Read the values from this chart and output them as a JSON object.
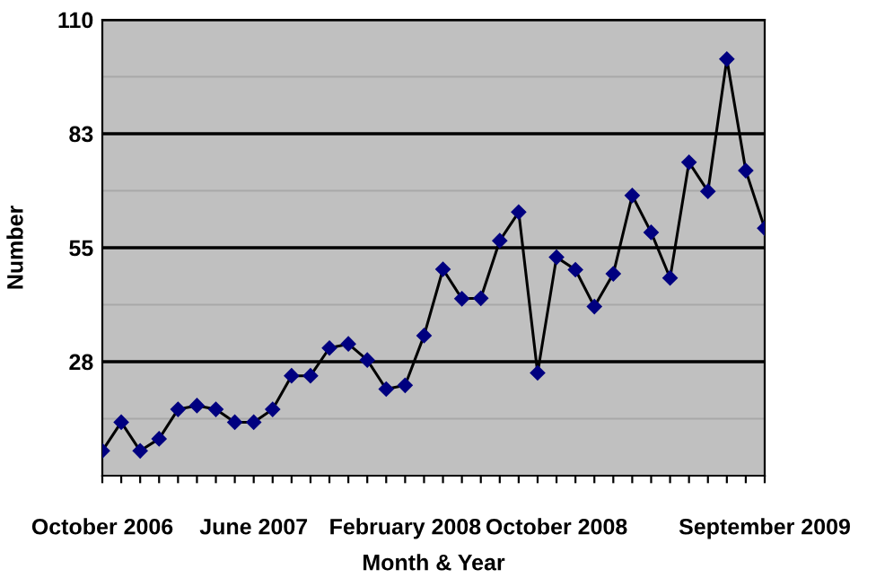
{
  "chart_data": {
    "type": "line",
    "xlabel": "Month & Year",
    "ylabel": "Number",
    "categories": [
      "October 2006",
      null,
      null,
      null,
      null,
      null,
      null,
      null,
      "June 2007",
      null,
      null,
      null,
      null,
      null,
      null,
      null,
      "February 2008",
      null,
      null,
      null,
      null,
      null,
      null,
      null,
      "October 2008",
      null,
      null,
      null,
      null,
      null,
      null,
      null,
      null,
      null,
      null,
      "September 2009"
    ],
    "series": [
      {
        "color": "#000080",
        "values": [
          6.0,
          12.9,
          6.0,
          8.9,
          16.0,
          16.9,
          16.0,
          12.9,
          12.9,
          16.0,
          24.1,
          24.1,
          30.8,
          31.8,
          27.9,
          20.9,
          21.8,
          33.8,
          49.8,
          42.7,
          42.8,
          56.7,
          63.6,
          24.8,
          52.7,
          49.7,
          40.8,
          48.7,
          67.6,
          58.7,
          47.7,
          75.6,
          68.6,
          100.5,
          73.6,
          59.7
        ]
      }
    ],
    "ylim": [
      0,
      110
    ],
    "yticks": [
      {
        "value": 13.75,
        "label": null
      },
      {
        "value": 27.5,
        "label": "28"
      },
      {
        "value": 41.25,
        "label": null
      },
      {
        "value": 55,
        "label": "55"
      },
      {
        "value": 68.75,
        "label": null
      },
      {
        "value": 82.5,
        "label": "83"
      },
      {
        "value": 96.25,
        "label": null
      },
      {
        "value": 110,
        "label": "110"
      }
    ],
    "grid": "y",
    "marker": "diamond",
    "line_style": "solid",
    "legend": false
  }
}
